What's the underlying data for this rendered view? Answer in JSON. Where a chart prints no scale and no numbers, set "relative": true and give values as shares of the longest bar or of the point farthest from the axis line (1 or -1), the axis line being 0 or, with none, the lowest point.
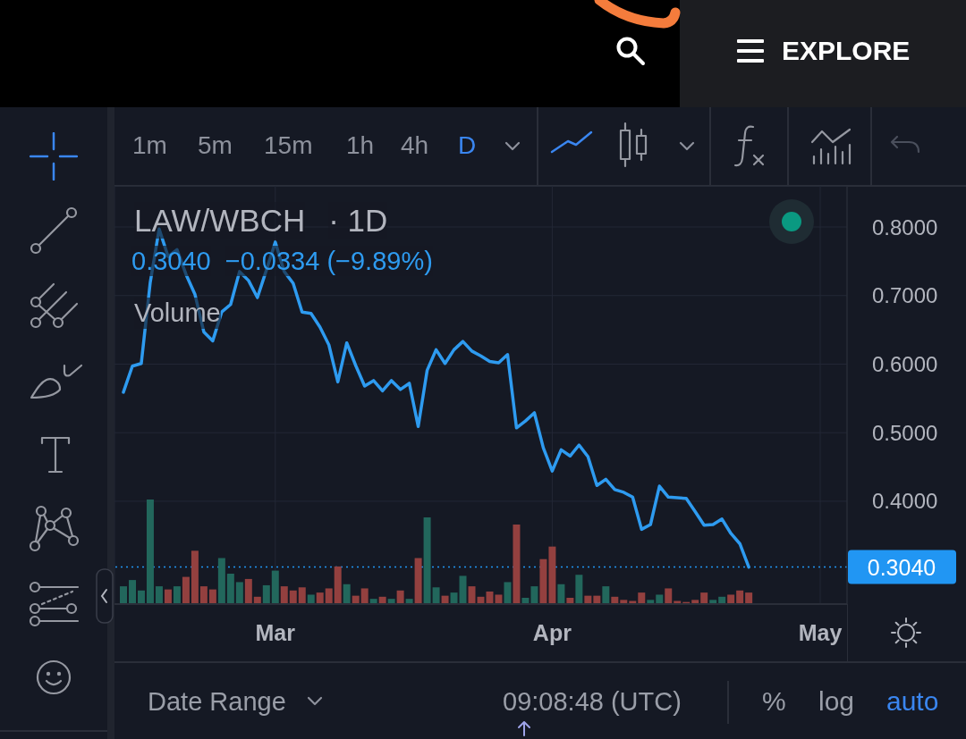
{
  "chart_data": [
    {
      "type": "line",
      "title": "LAW/WBCH",
      "subtitle": "· 1D",
      "annotations": [
        "0.3040",
        "−0.0334 (−9.89%)",
        "1m",
        "5m",
        "15m",
        "1h",
        "4h",
        "D",
        "Date Range",
        "09:08:48 (UTC)",
        "%",
        "log",
        "auto",
        "EXPLORE"
      ],
      "x": [
        "--02-12",
        "--02-13",
        "--02-14",
        "--02-15",
        "--02-16",
        "--02-17",
        "--02-18",
        "--02-19",
        "--02-20",
        "--02-21",
        "--02-22",
        "--02-23",
        "--02-24",
        "--02-25",
        "--02-26",
        "--02-27",
        "--02-28",
        "--03-01",
        "--03-02",
        "--03-03",
        "--03-04",
        "--03-05",
        "--03-06",
        "--03-07",
        "--03-08",
        "--03-09",
        "--03-10",
        "--03-11",
        "--03-12",
        "--03-13",
        "--03-14",
        "--03-15",
        "--03-16",
        "--03-17",
        "--03-18",
        "--03-19",
        "--03-20",
        "--03-21",
        "--03-22",
        "--03-23",
        "--03-24",
        "--03-25",
        "--03-26",
        "--03-27",
        "--03-28",
        "--03-29",
        "--03-30",
        "--03-31",
        "--04-01",
        "--04-02",
        "--04-03",
        "--04-04",
        "--04-05",
        "--04-06",
        "--04-07",
        "--04-08",
        "--04-09",
        "--04-10",
        "--04-11",
        "--04-12",
        "--04-13",
        "--04-14",
        "--04-15",
        "--04-16",
        "--04-17",
        "--04-18",
        "--04-19",
        "--04-20",
        "--04-21",
        "--04-22",
        "--04-23"
      ],
      "series": [
        {
          "color": "#2e9bf0",
          "values": [
            0.559,
            0.597,
            0.601,
            0.719,
            0.797,
            0.757,
            0.767,
            0.731,
            0.702,
            0.647,
            0.634,
            0.676,
            0.687,
            0.735,
            0.722,
            0.697,
            0.737,
            0.778,
            0.735,
            0.718,
            0.676,
            0.674,
            0.654,
            0.628,
            0.574,
            0.631,
            0.598,
            0.568,
            0.576,
            0.561,
            0.576,
            0.563,
            0.572,
            0.509,
            0.591,
            0.621,
            0.601,
            0.621,
            0.633,
            0.619,
            0.612,
            0.604,
            0.602,
            0.614,
            0.507,
            0.517,
            0.529,
            0.478,
            0.444,
            0.475,
            0.466,
            0.482,
            0.465,
            0.423,
            0.432,
            0.417,
            0.413,
            0.406,
            0.359,
            0.366,
            0.422,
            0.406,
            0.405,
            0.404,
            0.385,
            0.365,
            0.366,
            0.374,
            0.353,
            0.338,
            0.304
          ]
        }
      ],
      "xlim": [
        "--02-11",
        "--05-04"
      ],
      "xticks": [
        {
          "value": "--03-01",
          "label": "Mar"
        },
        {
          "value": "--04-01",
          "label": "Apr"
        },
        {
          "value": "--05-01",
          "label": "May"
        }
      ],
      "ylim": [
        0.25,
        0.86
      ],
      "yticks": [
        {
          "value": 0.4,
          "label": "0.4000"
        },
        {
          "value": 0.5,
          "label": "0.5000"
        },
        {
          "value": 0.6,
          "label": "0.6000"
        },
        {
          "value": 0.7,
          "label": "0.7000"
        },
        {
          "value": 0.8,
          "label": "0.8000"
        }
      ],
      "grid": true,
      "ref_lines": [
        {
          "axis": "y",
          "value": 0.304,
          "label": "0.3040",
          "color": "#2196f3",
          "line_style": "dotted"
        }
      ]
    },
    {
      "type": "bar",
      "title": "Volume",
      "relative": true,
      "x": [
        "--02-12",
        "--02-13",
        "--02-14",
        "--02-15",
        "--02-16",
        "--02-17",
        "--02-18",
        "--02-19",
        "--02-20",
        "--02-21",
        "--02-22",
        "--02-23",
        "--02-24",
        "--02-25",
        "--02-26",
        "--02-27",
        "--02-28",
        "--03-01",
        "--03-02",
        "--03-03",
        "--03-04",
        "--03-05",
        "--03-06",
        "--03-07",
        "--03-08",
        "--03-09",
        "--03-10",
        "--03-11",
        "--03-12",
        "--03-13",
        "--03-14",
        "--03-15",
        "--03-16",
        "--03-17",
        "--03-18",
        "--03-19",
        "--03-20",
        "--03-21",
        "--03-22",
        "--03-23",
        "--03-24",
        "--03-25",
        "--03-26",
        "--03-27",
        "--03-28",
        "--03-29",
        "--03-30",
        "--03-31",
        "--04-01",
        "--04-02",
        "--04-03",
        "--04-04",
        "--04-05",
        "--04-06",
        "--04-07",
        "--04-08",
        "--04-09",
        "--04-10",
        "--04-11",
        "--04-12",
        "--04-13",
        "--04-14",
        "--04-15",
        "--04-16",
        "--04-17",
        "--04-18",
        "--04-19",
        "--04-20",
        "--04-21",
        "--04-22",
        "--04-23"
      ],
      "values": [
        0.17,
        0.23,
        0.13,
        1,
        0.17,
        0.14,
        0.17,
        0.26,
        0.51,
        0.17,
        0.14,
        0.44,
        0.29,
        0.21,
        0.24,
        0.07,
        0.18,
        0.32,
        0.17,
        0.13,
        0.16,
        0.09,
        0.11,
        0.15,
        0.36,
        0.19,
        0.08,
        0.15,
        0.05,
        0.07,
        0.05,
        0.13,
        0.05,
        0.44,
        0.83,
        0.16,
        0.08,
        0.11,
        0.27,
        0.17,
        0.07,
        0.12,
        0.09,
        0.21,
        0.76,
        0.06,
        0.17,
        0.43,
        0.55,
        0.19,
        0.06,
        0.28,
        0.08,
        0.08,
        0.17,
        0.07,
        0.04,
        0.03,
        0.11,
        0.04,
        0.09,
        0.15,
        0.03,
        0.02,
        0.04,
        0.11,
        0.04,
        0.07,
        0.09,
        0.13,
        0.11
      ],
      "colors": [
        "#22675c",
        "#22675c",
        "#22675c",
        "#22675c",
        "#22675c",
        "#93403f",
        "#22675c",
        "#93403f",
        "#93403f",
        "#93403f",
        "#93403f",
        "#22675c",
        "#22675c",
        "#22675c",
        "#93403f",
        "#93403f",
        "#22675c",
        "#22675c",
        "#93403f",
        "#93403f",
        "#93403f",
        "#22675c",
        "#93403f",
        "#93403f",
        "#93403f",
        "#22675c",
        "#93403f",
        "#93403f",
        "#22675c",
        "#93403f",
        "#22675c",
        "#93403f",
        "#22675c",
        "#93403f",
        "#22675c",
        "#22675c",
        "#93403f",
        "#22675c",
        "#22675c",
        "#93403f",
        "#93403f",
        "#93403f",
        "#93403f",
        "#22675c",
        "#93403f",
        "#22675c",
        "#22675c",
        "#93403f",
        "#93403f",
        "#22675c",
        "#93403f",
        "#22675c",
        "#93403f",
        "#93403f",
        "#22675c",
        "#93403f",
        "#93403f",
        "#93403f",
        "#93403f",
        "#22675c",
        "#22675c",
        "#93403f",
        "#93403f",
        "#93403f",
        "#93403f",
        "#93403f",
        "#22675c",
        "#22675c",
        "#93403f",
        "#93403f",
        "#93403f"
      ],
      "xlim": [
        "--02-11",
        "--05-04"
      ],
      "tick_labels": false
    }
  ]
}
